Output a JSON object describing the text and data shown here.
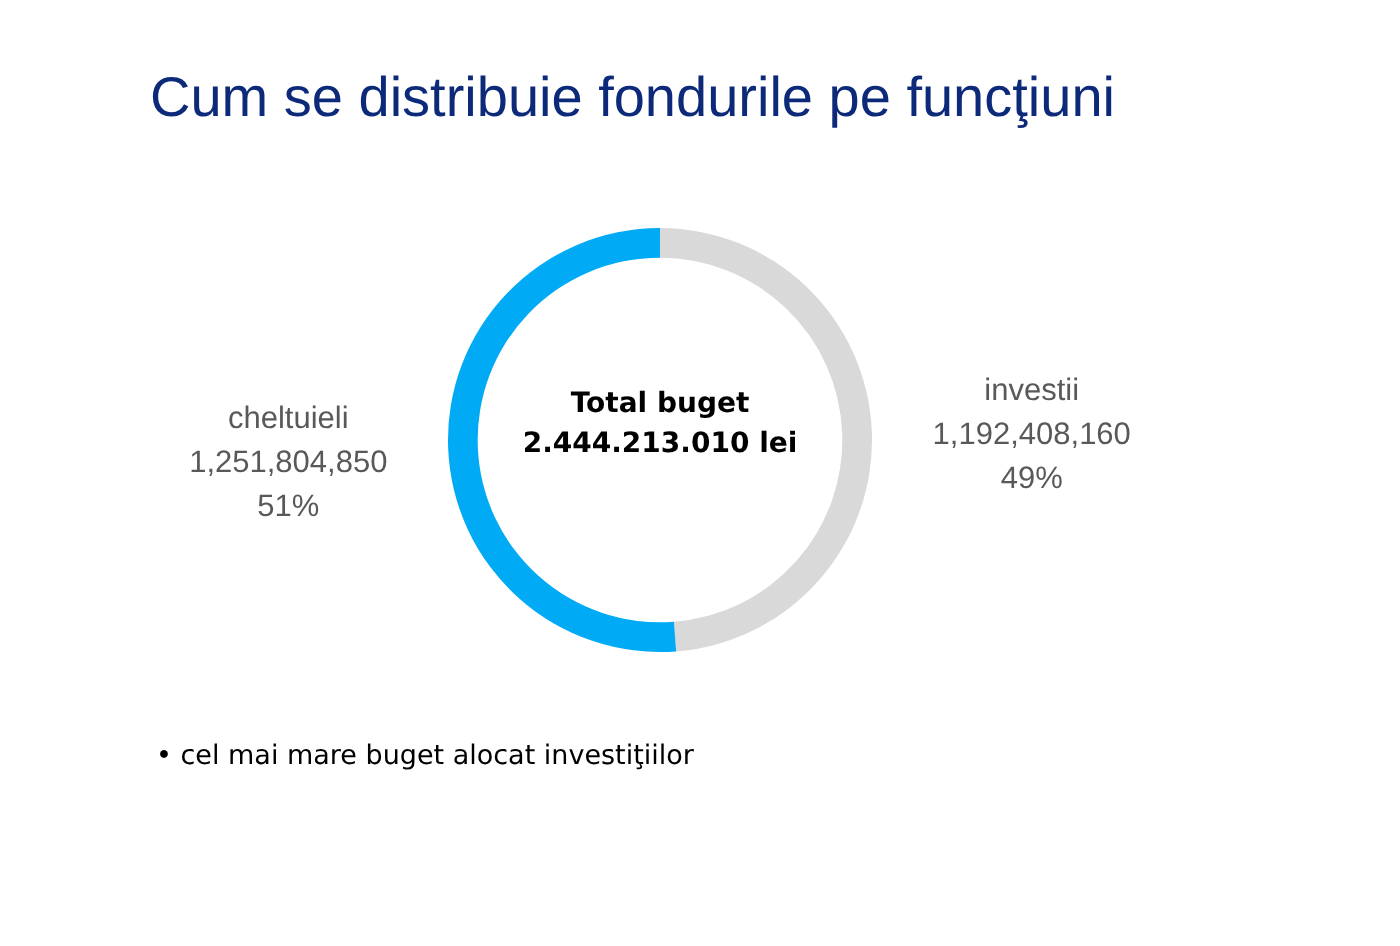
{
  "chart_data": {
    "type": "donut",
    "title": "Cum se distribuie fondurile pe funcţiuni",
    "categories": [
      "investii",
      "cheltuieli"
    ],
    "values": [
      1192408160,
      1251804850
    ],
    "colors": [
      "#d9d9d9",
      "#00aaf5"
    ],
    "value_labels": [
      "1,192,408,160",
      "1,251,804,850"
    ],
    "annotations": [
      {
        "text": "49%",
        "x": "investii"
      },
      {
        "text": "51%",
        "x": "cheltuieli"
      },
      "Total buget\n2.444.213.010 lei",
      "• cel mai mare buget alocat investiţiilor"
    ]
  }
}
